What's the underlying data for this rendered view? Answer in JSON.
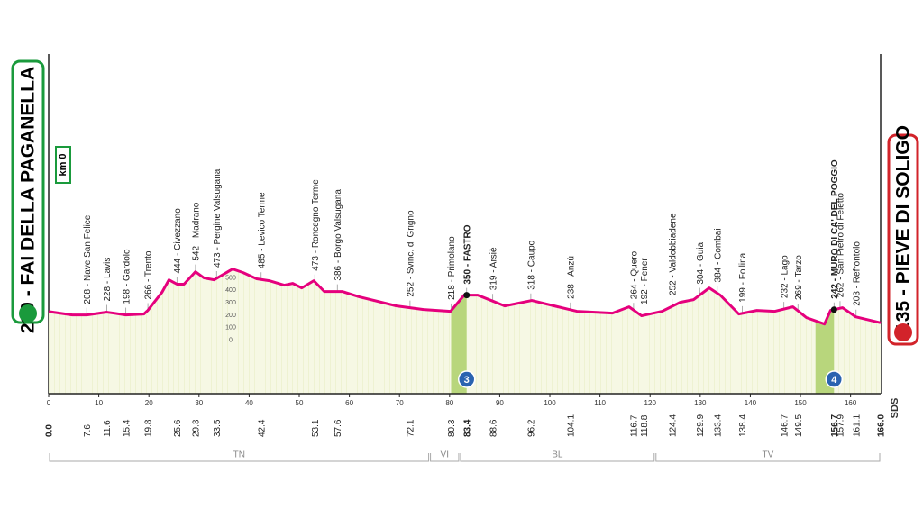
{
  "chart_data": {
    "type": "area",
    "start_label": "230 - FAI DELLA PAGANELLA",
    "finish_label": "135 - PIEVE DI SOLIGO",
    "km0_label": "km 0",
    "footer": "SDS",
    "x": [
      0,
      4.7,
      7.6,
      11.6,
      15.4,
      19,
      19.8,
      22.6,
      24,
      25.6,
      27,
      29.3,
      31,
      33,
      36.7,
      38.8,
      41.5,
      44,
      47,
      48.7,
      50.5,
      52.9,
      55,
      58.6,
      62,
      69.4,
      74.8,
      80.2,
      82.9,
      85.6,
      88.3,
      91,
      96.4,
      100.9,
      105.4,
      112.5,
      115.8,
      118.3,
      122.4,
      126,
      128.7,
      131.8,
      134,
      137.7,
      141.3,
      144.9,
      148.5,
      151.2,
      154.8,
      156,
      158.4,
      161,
      166
    ],
    "values": [
      230,
      203,
      203,
      225,
      203,
      210,
      240,
      384,
      485,
      450,
      450,
      550,
      500,
      485,
      572,
      543,
      493,
      478,
      442,
      456,
      420,
      478,
      391,
      391,
      348,
      275,
      246,
      232,
      362,
      362,
      319,
      275,
      319,
      275,
      232,
      217,
      268,
      196,
      232,
      304,
      326,
      420,
      362,
      210,
      239,
      232,
      268,
      181,
      130,
      239,
      261,
      188,
      140
    ],
    "color": "#e5007d",
    "xlim": [
      0,
      166
    ],
    "xticks": [
      0,
      10,
      20,
      30,
      40,
      50,
      60,
      70,
      80,
      90,
      100,
      110,
      120,
      130,
      140,
      150,
      160
    ],
    "ylim": [
      -430,
      2300
    ],
    "yticks": [
      0,
      100,
      200,
      300,
      400,
      500
    ],
    "km_start": {
      "value": 0,
      "label": "0.0"
    },
    "km_end": {
      "value": 166,
      "label": "166.0"
    },
    "waypoints": [
      {
        "km": 7.6,
        "label": "208 - Nave San Felice"
      },
      {
        "km": 11.6,
        "label": "228 - Lavis"
      },
      {
        "km": 15.4,
        "label": "198 - Gardolo"
      },
      {
        "km": 19.8,
        "label": "266 - Trento"
      },
      {
        "km": 25.6,
        "label": "444 - Civezzano"
      },
      {
        "km": 29.3,
        "label": "542 - Madrano"
      },
      {
        "km": 33.5,
        "label": "473 - Pergine Valsugana"
      },
      {
        "km": 42.4,
        "label": "485 - Levico Terme"
      },
      {
        "km": 53.1,
        "label": "473 - Roncegno Terme"
      },
      {
        "km": 57.6,
        "label": "386 - Borgo Valsugana"
      },
      {
        "km": 72.1,
        "label": "252 - Svinc. di Grigno"
      },
      {
        "km": 80.3,
        "label": "218 - Primolano"
      },
      {
        "km": 83.4,
        "label": "350 - FASTRO",
        "bold": true
      },
      {
        "km": 88.6,
        "label": "319 - Arsiè"
      },
      {
        "km": 96.2,
        "label": "318 - Caupo"
      },
      {
        "km": 104.1,
        "label": "238 - Anzù"
      },
      {
        "km": 116.7,
        "label": "264 - Quero"
      },
      {
        "km": 118.8,
        "label": "192 - Fener"
      },
      {
        "km": 124.4,
        "label": "252 - Valdobbiadene"
      },
      {
        "km": 129.9,
        "label": "304 - Guia"
      },
      {
        "km": 133.4,
        "label": "384 - Combai"
      },
      {
        "km": 138.4,
        "label": "199 - Follina"
      },
      {
        "km": 146.7,
        "label": "232 - Lago"
      },
      {
        "km": 149.5,
        "label": "269 - Tarzo"
      },
      {
        "km": 156.7,
        "label": "242 - MURO DI CA' DEL POGGIO",
        "bold": true
      },
      {
        "km": 157.9,
        "label": "262 - San Pietro di Feletto"
      },
      {
        "km": 161.1,
        "label": "203 - Refrontolo"
      }
    ],
    "climbs": [
      {
        "start": 80.3,
        "end": 83.4,
        "category": 3
      },
      {
        "start": 153,
        "end": 156.7,
        "category": 4
      }
    ],
    "regions": [
      {
        "name": "TN",
        "start": 0,
        "end": 76
      },
      {
        "name": "VI",
        "start": 76,
        "end": 82
      },
      {
        "name": "BL",
        "start": 82,
        "end": 121
      },
      {
        "name": "TV",
        "start": 121,
        "end": 166
      }
    ]
  }
}
